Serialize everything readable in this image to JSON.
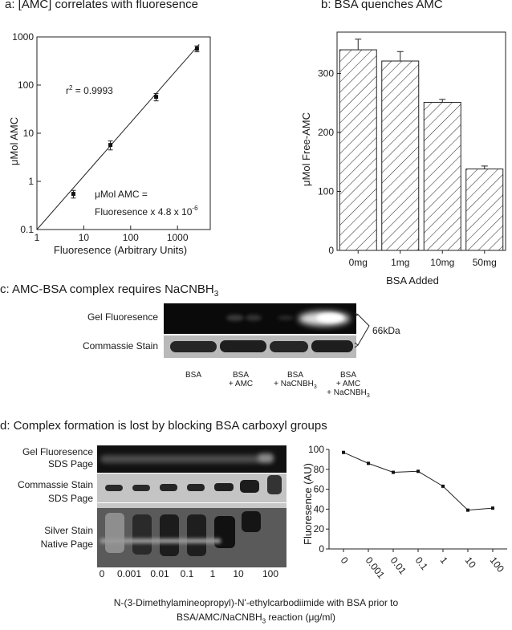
{
  "panel_a": {
    "title": "a: [AMC] correlates with fluoresence",
    "r2_base": "r",
    "r2_sup": "2",
    "r2_value": " = 0.9993",
    "equation_line1": "μMol AMC =",
    "equation_line2": "Fluoresence x 4.8 x 10",
    "equation_exp": "-6"
  },
  "panel_b": {
    "title": "b: BSA quenches AMC"
  },
  "panel_c": {
    "title_main": "c: AMC-BSA complex requires NaCNBH",
    "title_sub": "3",
    "row_gel": "Gel Fluoresence",
    "row_stain": "Commassie Stain",
    "size_label": "66kDa",
    "lanes": [
      {
        "l1": "BSA",
        "l2": "",
        "l3": ""
      },
      {
        "l1": "BSA",
        "l2": "+ AMC",
        "l3": ""
      },
      {
        "l1": "BSA",
        "l2": "+ NaCNBH",
        "l3": ""
      },
      {
        "l1": "BSA",
        "l2": "+ AMC",
        "l3": "+ NaCNBH"
      }
    ],
    "sub3": "3"
  },
  "panel_d": {
    "title": "d: Complex formation is lost by blocking BSA carboxyl groups",
    "row1a": "Gel Fluoresence",
    "row1b": "SDS Page",
    "row2a": "Commassie Stain",
    "row2b": "SDS Page",
    "row3a": "Silver Stain",
    "row3b": "Native Page",
    "doses": [
      "0",
      "0.001",
      "0.01",
      "0.1",
      "1",
      "10",
      "100"
    ],
    "caption_line1": "N-(3-Dimethylamineopropyl)-N'-ethylcarbodiimide with BSA prior to",
    "caption_line2a": "BSA/AMC/NaCNBH",
    "caption_line2_sub": "3",
    "caption_line2b": " reaction (μg/ml)"
  },
  "chart_data": [
    {
      "type": "scatter",
      "title": "a: [AMC] correlates with fluoresence",
      "xlabel": "Fluoresence (Arbitrary Units)",
      "ylabel": "μMol AMC",
      "xscale": "log",
      "yscale": "log",
      "xlim": [
        1,
        5000
      ],
      "ylim": [
        0.1,
        1000
      ],
      "xticks": [
        "1",
        "10",
        "100",
        "1000"
      ],
      "yticks": [
        "0.1",
        "1",
        "10",
        "100",
        "1000"
      ],
      "points": [
        {
          "x": 6,
          "y": 0.55,
          "err": 0.1
        },
        {
          "x": 37,
          "y": 5.7,
          "err": 1.2
        },
        {
          "x": 350,
          "y": 57,
          "err": 10
        },
        {
          "x": 2600,
          "y": 570,
          "err": 80
        }
      ],
      "fit_line": {
        "x": [
          1,
          2900
        ],
        "y": [
          0.1,
          700
        ]
      }
    },
    {
      "type": "bar",
      "title": "b: BSA quenches AMC",
      "categories": [
        "0mg",
        "1mg",
        "10mg",
        "50mg"
      ],
      "values": [
        340,
        321,
        251,
        138
      ],
      "errors": [
        18,
        16,
        5,
        5
      ],
      "xlabel": "BSA Added",
      "ylabel": "μMol Free-AMC",
      "ylim": [
        0,
        370
      ],
      "yticks": [
        "0",
        "100",
        "200",
        "300"
      ],
      "fill": "hatched"
    },
    {
      "type": "line",
      "categories": [
        "0",
        "0.001",
        "0.01",
        "0.1",
        "1",
        "10",
        "100"
      ],
      "values": [
        97,
        86,
        77,
        78,
        63,
        39,
        41
      ],
      "ylabel": "Fluoresence (AU)",
      "ylim": [
        0,
        100
      ],
      "yticks": [
        "0",
        "20",
        "40",
        "60",
        "80",
        "100"
      ]
    }
  ]
}
